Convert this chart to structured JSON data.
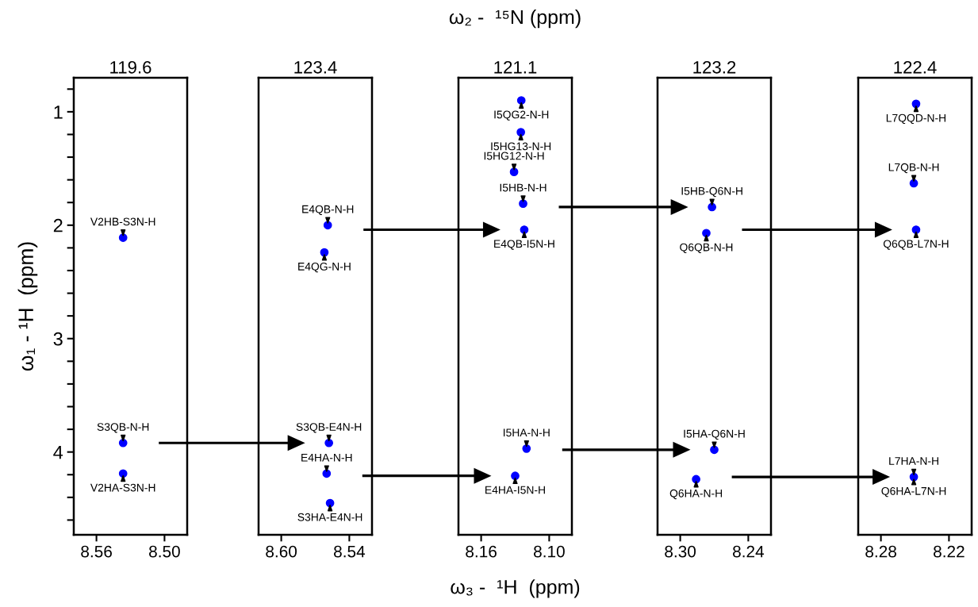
{
  "chart_data": [
    {
      "type": "scatter",
      "title": "119.6",
      "ylabel": "ω₁ - ¹H  (ppm)",
      "marker": "circle",
      "color": "#0000ff",
      "x": [
        8.5365,
        8.5365,
        8.5365
      ],
      "values": [
        2.11,
        3.92,
        4.19
      ],
      "xlim": [
        8.58,
        8.48
      ],
      "xticks": [
        {
          "value": 8.56,
          "label": "8.56"
        },
        {
          "value": 8.5,
          "label": "8.50"
        }
      ],
      "ylim": [
        4.73,
        0.7
      ],
      "yticks": [
        {
          "value": 0.8,
          "label": null
        },
        1,
        {
          "value": 1.2,
          "label": null
        },
        {
          "value": 1.4,
          "label": null
        },
        {
          "value": 1.6,
          "label": null
        },
        {
          "value": 1.8,
          "label": null
        },
        2,
        {
          "value": 2.2,
          "label": null
        },
        {
          "value": 2.4,
          "label": null
        },
        {
          "value": 2.6,
          "label": null
        },
        {
          "value": 2.8,
          "label": null
        },
        3,
        {
          "value": 3.2,
          "label": null
        },
        {
          "value": 3.4,
          "label": null
        },
        {
          "value": 3.6,
          "label": null
        },
        {
          "value": 3.8,
          "label": null
        },
        4,
        {
          "value": 4.2,
          "label": null
        },
        {
          "value": 4.4,
          "label": null
        },
        {
          "value": 4.6,
          "label": null
        }
      ],
      "annotations": [
        {
          "text": "V2HB-S3N-H",
          "x": 8.5365,
          "y": 2.11
        },
        {
          "text": "S3QB-N-H",
          "x": 8.5365,
          "y": 3.92
        },
        {
          "text": "V2HA-S3N-H",
          "x": 8.5365,
          "y": 4.19
        }
      ]
    },
    {
      "type": "scatter",
      "title": "123.4",
      "marker": "circle",
      "color": "#0000ff",
      "tick_labels": "x",
      "x": [
        8.559,
        8.562,
        8.558,
        8.56,
        8.557
      ],
      "values": [
        2.0,
        2.24,
        3.92,
        4.19,
        4.45
      ],
      "xlim": [
        8.62,
        8.52
      ],
      "xticks": [
        {
          "value": 8.6,
          "label": "8.60"
        },
        {
          "value": 8.54,
          "label": "8.54"
        }
      ],
      "ylim": [
        4.73,
        0.7
      ],
      "annotations": [
        {
          "text": "E4QB-N-H",
          "x": 8.559,
          "y": 2.0
        },
        {
          "text": "E4QG-N-H",
          "x": 8.562,
          "y": 2.24
        },
        {
          "text": "S3QB-E4N-H",
          "x": 8.558,
          "y": 3.92
        },
        {
          "text": "E4HA-N-H",
          "x": 8.56,
          "y": 4.19
        },
        {
          "text": "S3HA-E4N-H",
          "x": 8.557,
          "y": 4.45
        }
      ]
    },
    {
      "type": "scatter",
      "title": "121.1",
      "subtitle": "ω₂ -  ¹⁵N (ppm)",
      "xlabel": "ω₃ -  ¹H  (ppm)",
      "marker": "circle",
      "color": "#0000ff",
      "tick_labels": "x",
      "x": [
        8.1246,
        8.125,
        8.131,
        8.123,
        8.122,
        8.12,
        8.13
      ],
      "values": [
        0.9,
        1.18,
        1.53,
        1.81,
        2.04,
        3.97,
        4.21
      ],
      "xlim": [
        8.18,
        8.08
      ],
      "xticks": [
        {
          "value": 8.16,
          "label": "8.16"
        },
        {
          "value": 8.1,
          "label": "8.10"
        }
      ],
      "ylim": [
        4.73,
        0.7
      ],
      "annotations": [
        {
          "text": "I5QG2-N-H",
          "x": 8.1246,
          "y": 0.9
        },
        {
          "text": "I5HG13-N-H",
          "x": 8.125,
          "y": 1.18
        },
        {
          "text": "I5HG12-N-H",
          "x": 8.131,
          "y": 1.53
        },
        {
          "text": "I5HB-N-H",
          "x": 8.123,
          "y": 1.81
        },
        {
          "text": "E4QB-I5N-H",
          "x": 8.122,
          "y": 2.04
        },
        {
          "text": "I5HA-N-H",
          "x": 8.12,
          "y": 3.97
        },
        {
          "text": "E4HA-I5N-H",
          "x": 8.13,
          "y": 4.21
        }
      ]
    },
    {
      "type": "scatter",
      "title": "123.2",
      "marker": "circle",
      "color": "#0000ff",
      "tick_labels": "x",
      "x": [
        8.272,
        8.277,
        8.27,
        8.286
      ],
      "values": [
        1.84,
        2.07,
        3.98,
        4.24
      ],
      "xlim": [
        8.32,
        8.22
      ],
      "xticks": [
        {
          "value": 8.3,
          "label": "8.30"
        },
        {
          "value": 8.24,
          "label": "8.24"
        }
      ],
      "ylim": [
        4.73,
        0.7
      ],
      "annotations": [
        {
          "text": "I5HB-Q6N-H",
          "x": 8.272,
          "y": 1.84
        },
        {
          "text": "Q6QB-N-H",
          "x": 8.277,
          "y": 2.07
        },
        {
          "text": "I5HA-Q6N-H",
          "x": 8.27,
          "y": 3.98
        },
        {
          "text": "Q6HA-N-H",
          "x": 8.286,
          "y": 4.24
        }
      ]
    },
    {
      "type": "scatter",
      "title": "122.4",
      "marker": "circle",
      "color": "#0000ff",
      "tick_labels": "x",
      "x": [
        8.249,
        8.251,
        8.249,
        8.251
      ],
      "values": [
        0.93,
        1.63,
        2.04,
        4.22
      ],
      "xlim": [
        8.3,
        8.2
      ],
      "xticks": [
        {
          "value": 8.28,
          "label": "8.28"
        },
        {
          "value": 8.22,
          "label": "8.22"
        }
      ],
      "ylim": [
        4.73,
        0.7
      ],
      "annotations": [
        {
          "text": "L7QQD-N-H",
          "x": 8.249,
          "y": 0.93
        },
        {
          "text": "L7QB-N-H",
          "x": 8.251,
          "y": 1.63
        },
        {
          "text": "Q6QB-L7N-H",
          "x": 8.249,
          "y": 2.04
        },
        {
          "text": "L7HA-N-H",
          "x": 8.251,
          "y": 4.22
        },
        {
          "text": "Q6HA-L7N-H",
          "x": 8.251,
          "y": 4.22
        }
      ]
    }
  ]
}
